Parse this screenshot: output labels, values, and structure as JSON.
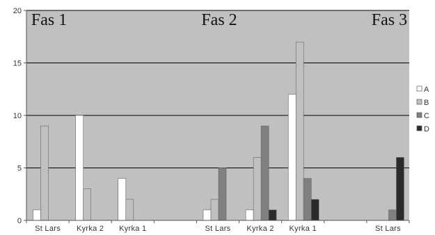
{
  "chart_data": {
    "type": "bar",
    "title": "",
    "xlabel": "",
    "ylabel": "",
    "ylim": [
      0,
      20
    ],
    "yticks": [
      0,
      5,
      10,
      15,
      20
    ],
    "grid": true,
    "legend_position": "right",
    "categories": [
      "St Lars",
      "Kyrka 2",
      "Kyrka 1",
      "",
      "St Lars",
      "Kyrka 2",
      "Kyrka 1",
      "",
      "St Lars"
    ],
    "phase_labels": [
      {
        "label": "Fas 1",
        "at_category": 0
      },
      {
        "label": "Fas 2",
        "at_category": 4
      },
      {
        "label": "Fas 3",
        "at_category": 8
      }
    ],
    "series": [
      {
        "name": "A",
        "color": "#ffffff",
        "values": [
          1,
          10,
          4,
          0,
          1,
          1,
          12,
          0,
          0
        ]
      },
      {
        "name": "B",
        "color": "#c0c0c0",
        "values": [
          9,
          3,
          2,
          0,
          2,
          6,
          17,
          0,
          0
        ]
      },
      {
        "name": "C",
        "color": "#808080",
        "values": [
          0,
          0,
          0,
          0,
          5,
          9,
          4,
          0,
          1
        ]
      },
      {
        "name": "D",
        "color": "#2b2b2b",
        "values": [
          0,
          0,
          0,
          0,
          0,
          1,
          2,
          0,
          6
        ]
      }
    ],
    "colors": {
      "plot_background": "#c0c0c0",
      "gridline": "#000000",
      "axis": "#555555"
    }
  }
}
